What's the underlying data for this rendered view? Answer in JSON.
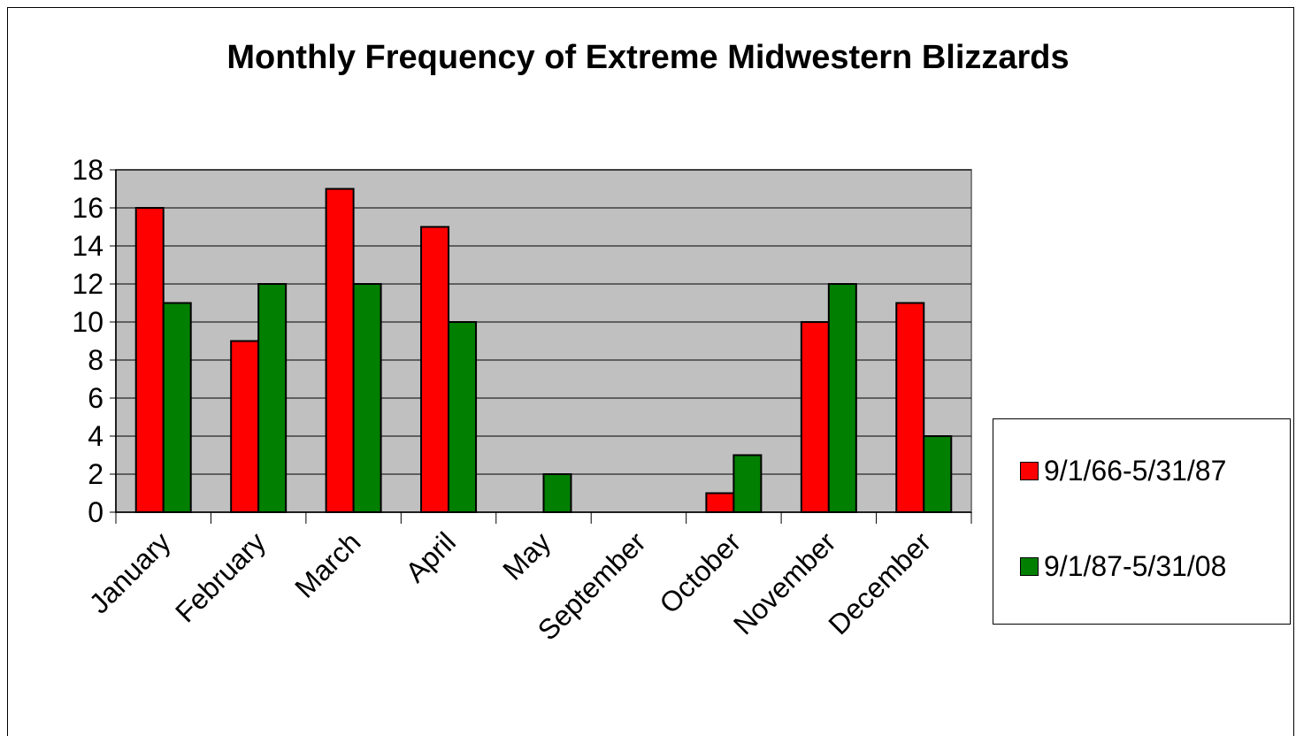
{
  "chart_data": {
    "type": "bar",
    "title": "Monthly Frequency of Extreme Midwestern Blizzards",
    "xlabel": "",
    "ylabel": "",
    "categories": [
      "January",
      "February",
      "March",
      "April",
      "May",
      "September",
      "October",
      "November",
      "December"
    ],
    "series": [
      {
        "name": "9/1/66-5/31/87",
        "color": "#ff0000",
        "values": [
          16,
          9,
          17,
          15,
          0,
          0,
          1,
          10,
          11
        ]
      },
      {
        "name": "9/1/87-5/31/08",
        "color": "#007f00",
        "values": [
          11,
          12,
          12,
          10,
          2,
          0,
          3,
          12,
          4
        ]
      }
    ],
    "ylim": [
      0,
      18
    ],
    "yticks": [
      0,
      2,
      4,
      6,
      8,
      10,
      12,
      14,
      16,
      18
    ],
    "grid": true,
    "plot_background": "#c0c0c0",
    "legend_position": "right"
  }
}
